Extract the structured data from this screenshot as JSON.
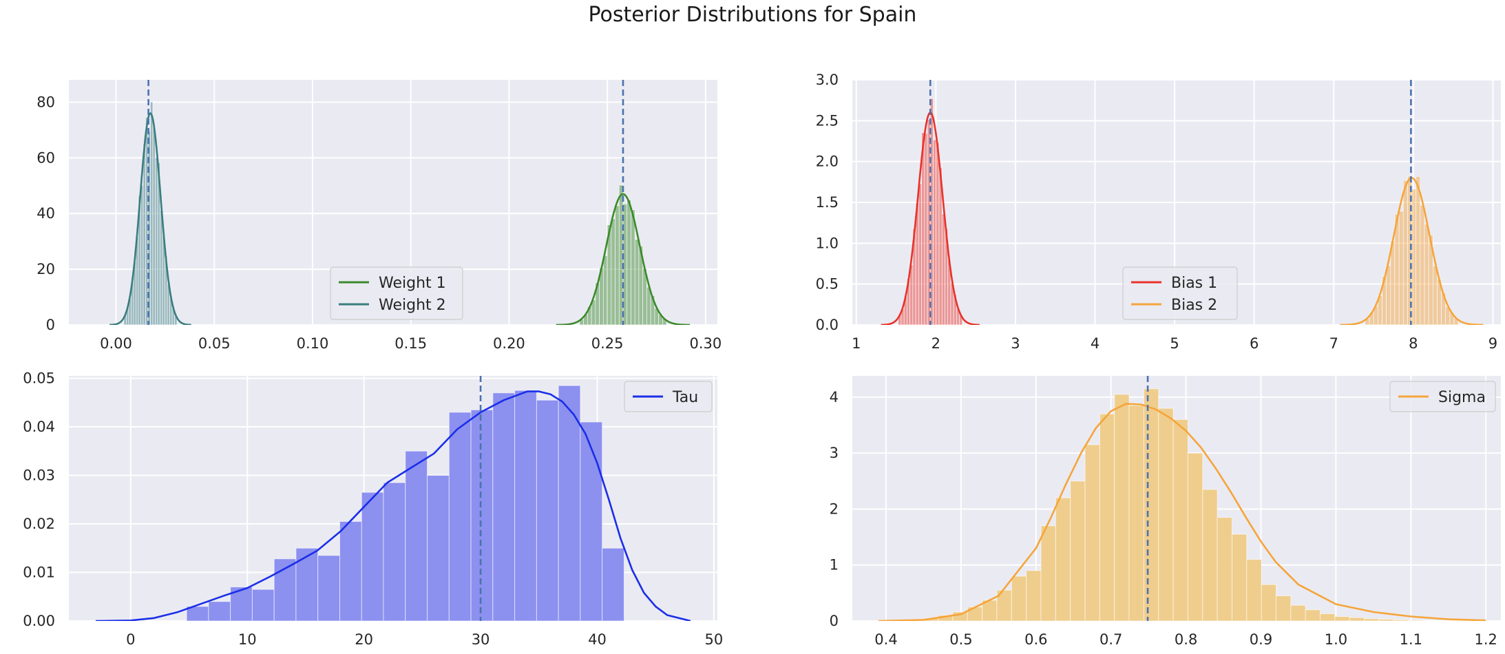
{
  "title": "Posterior Distributions for Spain",
  "chart_data": [
    {
      "type": "histogram+kde",
      "xlim": [
        -0.024,
        0.306
      ],
      "ylim": [
        0,
        88
      ],
      "xticks": [
        "0.00",
        "0.05",
        "0.10",
        "0.15",
        "0.20",
        "0.25",
        "0.30"
      ],
      "xtick_values": [
        0.0,
        0.05,
        0.1,
        0.15,
        0.2,
        0.25,
        0.3
      ],
      "yticks": [
        "0",
        "20",
        "40",
        "60",
        "80"
      ],
      "ytick_values": [
        0,
        20,
        40,
        60,
        80
      ],
      "legend": "lower center",
      "grid": true,
      "series": [
        {
          "name": "Weight 1",
          "color": "#3a8a2a",
          "mean": 0.258,
          "sd": 0.0085,
          "peak": 47,
          "vline": 0.258
        },
        {
          "name": "Weight 2",
          "color": "#3a7d7f",
          "mean": 0.0175,
          "sd": 0.0052,
          "peak": 76,
          "vline": 0.0165
        }
      ]
    },
    {
      "type": "histogram+kde",
      "xlim": [
        0.95,
        9.1
      ],
      "ylim": [
        0,
        3.0
      ],
      "xticks": [
        "1",
        "2",
        "3",
        "4",
        "5",
        "6",
        "7",
        "8",
        "9"
      ],
      "xtick_values": [
        1,
        2,
        3,
        4,
        5,
        6,
        7,
        8,
        9
      ],
      "yticks": [
        "0.0",
        "0.5",
        "1.0",
        "1.5",
        "2.0",
        "2.5",
        "3.0"
      ],
      "ytick_values": [
        0,
        0.5,
        1.0,
        1.5,
        2.0,
        2.5,
        3.0
      ],
      "legend": "lower center",
      "grid": true,
      "series": [
        {
          "name": "Bias 1",
          "color": "#e8322a",
          "mean": 1.93,
          "sd": 0.155,
          "peak": 2.6,
          "vline": 1.93
        },
        {
          "name": "Bias 2",
          "color": "#f5a53a",
          "mean": 7.98,
          "sd": 0.225,
          "peak": 1.8,
          "vline": 7.97
        }
      ]
    },
    {
      "type": "histogram+kde",
      "xlim": [
        -5.3,
        50.3
      ],
      "ylim": [
        0,
        0.0505
      ],
      "xticks": [
        "0",
        "10",
        "20",
        "30",
        "40",
        "50"
      ],
      "xtick_values": [
        0,
        10,
        20,
        30,
        40,
        50
      ],
      "yticks": [
        "0.00",
        "0.01",
        "0.02",
        "0.03",
        "0.04",
        "0.05"
      ],
      "ytick_values": [
        0,
        0.01,
        0.02,
        0.03,
        0.04,
        0.05
      ],
      "legend": "upper right",
      "grid": true,
      "series": [
        {
          "name": "Tau",
          "color": "#1a2ee8",
          "bar_color": "#8c90ef",
          "bin_start": 4.8,
          "bin_width": 1.875,
          "bar_values": [
            0.003,
            0.004,
            0.007,
            0.0065,
            0.0128,
            0.015,
            0.0135,
            0.0205,
            0.0265,
            0.0285,
            0.035,
            0.03,
            0.043,
            0.0435,
            0.047,
            0.0475,
            0.0455,
            0.0485,
            0.041,
            0.015
          ],
          "kde_x": [
            -3,
            0,
            2,
            4,
            6,
            8,
            10,
            12,
            14,
            16,
            18,
            20,
            22,
            24,
            26,
            28,
            30,
            32,
            34,
            35,
            36,
            37,
            38,
            39,
            40,
            41,
            42,
            43,
            44,
            45,
            46,
            48
          ],
          "kde_y": [
            0.0,
            0.0001,
            0.0006,
            0.0018,
            0.0035,
            0.0052,
            0.0068,
            0.0092,
            0.0118,
            0.0145,
            0.0185,
            0.0235,
            0.0285,
            0.0315,
            0.0345,
            0.0395,
            0.043,
            0.0455,
            0.0473,
            0.0473,
            0.0467,
            0.0452,
            0.0425,
            0.0385,
            0.0325,
            0.025,
            0.017,
            0.0105,
            0.0058,
            0.003,
            0.0012,
            0.0
          ],
          "vline": 30.0
        }
      ]
    },
    {
      "type": "histogram+kde",
      "xlim": [
        0.355,
        1.22
      ],
      "ylim": [
        0,
        4.38
      ],
      "xticks": [
        "0.4",
        "0.5",
        "0.6",
        "0.7",
        "0.8",
        "0.9",
        "1.0",
        "1.1",
        "1.2"
      ],
      "xtick_values": [
        0.4,
        0.5,
        0.6,
        0.7,
        0.8,
        0.9,
        1.0,
        1.1,
        1.2
      ],
      "yticks": [
        "0",
        "1",
        "2",
        "3",
        "4"
      ],
      "ytick_values": [
        0,
        1,
        2,
        3,
        4
      ],
      "legend": "upper right",
      "grid": true,
      "series": [
        {
          "name": "Sigma",
          "color": "#f5a53a",
          "bar_color": "#efcd8c",
          "bin_start": 0.391,
          "bin_width": 0.0196,
          "bar_values": [
            0.01,
            0.02,
            0.03,
            0.05,
            0.1,
            0.16,
            0.25,
            0.37,
            0.55,
            0.8,
            0.9,
            1.7,
            2.2,
            2.5,
            3.15,
            3.7,
            4.05,
            3.85,
            4.15,
            3.8,
            3.6,
            3.0,
            2.35,
            1.85,
            1.55,
            1.1,
            0.65,
            0.45,
            0.28,
            0.2,
            0.13,
            0.08,
            0.06,
            0.04,
            0.03,
            0.02,
            0.01
          ],
          "kde_x": [
            0.39,
            0.45,
            0.5,
            0.55,
            0.6,
            0.62,
            0.64,
            0.66,
            0.68,
            0.7,
            0.72,
            0.74,
            0.76,
            0.78,
            0.8,
            0.82,
            0.84,
            0.86,
            0.88,
            0.9,
            0.92,
            0.95,
            1.0,
            1.05,
            1.1,
            1.15,
            1.2
          ],
          "kde_y": [
            0.0,
            0.02,
            0.12,
            0.45,
            1.3,
            1.85,
            2.45,
            3.0,
            3.45,
            3.75,
            3.88,
            3.87,
            3.78,
            3.62,
            3.4,
            3.1,
            2.72,
            2.3,
            1.85,
            1.42,
            1.05,
            0.65,
            0.3,
            0.16,
            0.08,
            0.03,
            0.01
          ],
          "vline": 0.749
        }
      ]
    }
  ]
}
